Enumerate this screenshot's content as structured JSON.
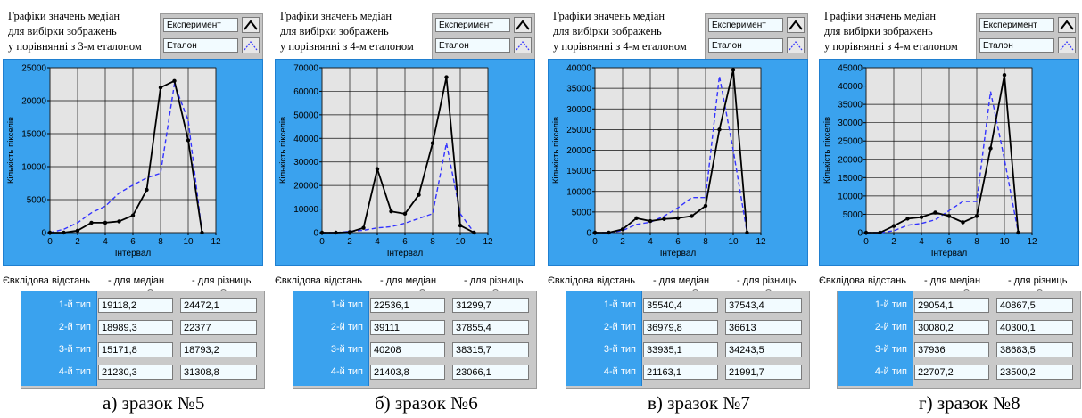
{
  "legend": {
    "experiment": "Експеримент",
    "etalon": "Еталон"
  },
  "colors": {
    "experiment": "#000000",
    "etalon": "#3333ff",
    "panel_blue": "#3aa2ee",
    "plot_bg": "#e4e4e4"
  },
  "axis": {
    "xlabel": "Інтервал",
    "ylabel": "Кількість пікселів",
    "xticks": [
      "0",
      "2",
      "4",
      "6",
      "8",
      "10",
      "12"
    ]
  },
  "distances": {
    "header": "Євклідова відстань",
    "medians_header": "- для медіан",
    "differences_header": "- для різниць",
    "types": [
      "1-й тип",
      "2-й тип",
      "3-й тип",
      "4-й тип"
    ]
  },
  "panels": [
    {
      "title_lines": [
        "Графіки значень медіан",
        "для вибірки зображень",
        "у порівнянні з 3-м еталоном"
      ],
      "yticks": [
        "0",
        "5000",
        "10000",
        "15000",
        "20000",
        "25000"
      ],
      "medians": [
        "19118,2",
        "18989,3",
        "15171,8",
        "21230,3"
      ],
      "differences": [
        "24472,1",
        "22377",
        "18793,2",
        "31308,8"
      ],
      "caption": "а) зразок №5"
    },
    {
      "title_lines": [
        "Графіки значень медіан",
        "для вибірки зображень",
        "у порівнянні з 4-м еталоном"
      ],
      "yticks": [
        "0",
        "10000",
        "20000",
        "30000",
        "40000",
        "50000",
        "60000",
        "70000"
      ],
      "medians": [
        "22536,1",
        "39111",
        "40208",
        "21403,8"
      ],
      "differences": [
        "31299,7",
        "37855,4",
        "38315,7",
        "23066,1"
      ],
      "caption": "б) зразок №6"
    },
    {
      "title_lines": [
        "Графіки значень медіан",
        "для вибірки зображень",
        "у порівнянні з 4-м еталоном"
      ],
      "yticks": [
        "0",
        "5000",
        "10000",
        "15000",
        "20000",
        "25000",
        "30000",
        "35000",
        "40000"
      ],
      "medians": [
        "35540,4",
        "36979,8",
        "33935,1",
        "21163,1"
      ],
      "differences": [
        "37543,4",
        "36613",
        "34243,5",
        "21991,7"
      ],
      "caption": "в) зразок №7"
    },
    {
      "title_lines": [
        "Графіки значень медіан",
        "для вибірки зображень",
        "у порівнянні з 4-м еталоном"
      ],
      "yticks": [
        "0",
        "5000",
        "10000",
        "15000",
        "20000",
        "25000",
        "30000",
        "35000",
        "40000",
        "45000"
      ],
      "medians": [
        "29054,1",
        "30080,2",
        "37936",
        "22707,2"
      ],
      "differences": [
        "40867,5",
        "40300,1",
        "38683,5",
        "23500,2"
      ],
      "caption": "г) зразок №8"
    }
  ],
  "chart_data": [
    {
      "type": "line",
      "xlabel": "Інтервал",
      "ylabel": "Кількість пікселів",
      "xlim": [
        0,
        12
      ],
      "ylim": [
        0,
        25000
      ],
      "series": [
        {
          "name": "Експеримент",
          "x": [
            0,
            1,
            2,
            3,
            4,
            5,
            6,
            7,
            8,
            9,
            10,
            11
          ],
          "values": [
            0,
            0,
            300,
            1500,
            1500,
            1700,
            2600,
            6500,
            22000,
            23000,
            14000,
            0
          ]
        },
        {
          "name": "Еталон",
          "x": [
            0,
            1,
            2,
            3,
            4,
            5,
            6,
            7,
            8,
            9,
            10,
            11
          ],
          "values": [
            0,
            500,
            1500,
            3000,
            4000,
            6000,
            7200,
            8300,
            9000,
            22500,
            17000,
            0
          ]
        }
      ]
    },
    {
      "type": "line",
      "xlabel": "Інтервал",
      "ylabel": "Кількість пікселів",
      "xlim": [
        0,
        12
      ],
      "ylim": [
        0,
        70000
      ],
      "series": [
        {
          "name": "Експеримент",
          "x": [
            0,
            1,
            2,
            3,
            4,
            5,
            6,
            7,
            8,
            9,
            10,
            11
          ],
          "values": [
            0,
            0,
            200,
            2000,
            27000,
            9000,
            8000,
            16000,
            38000,
            66000,
            3000,
            0
          ]
        },
        {
          "name": "Еталон",
          "x": [
            0,
            1,
            2,
            3,
            4,
            5,
            6,
            7,
            8,
            9,
            10,
            11
          ],
          "values": [
            0,
            0,
            500,
            1000,
            2000,
            2500,
            4000,
            6000,
            8000,
            38000,
            8000,
            0
          ]
        }
      ]
    },
    {
      "type": "line",
      "xlabel": "Інтервал",
      "ylabel": "Кількість пікселів",
      "xlim": [
        0,
        12
      ],
      "ylim": [
        0,
        40000
      ],
      "series": [
        {
          "name": "Експеримент",
          "x": [
            0,
            1,
            2,
            3,
            4,
            5,
            6,
            7,
            8,
            9,
            10,
            11
          ],
          "values": [
            0,
            0,
            800,
            3500,
            2800,
            3300,
            3500,
            4000,
            6500,
            25000,
            39500,
            0
          ]
        },
        {
          "name": "Еталон",
          "x": [
            0,
            1,
            2,
            3,
            4,
            5,
            6,
            7,
            8,
            9,
            10,
            11
          ],
          "values": [
            0,
            0,
            500,
            2000,
            2500,
            4000,
            6000,
            8500,
            8500,
            38000,
            20000,
            0
          ]
        }
      ]
    },
    {
      "type": "line",
      "xlabel": "Інтервал",
      "ylabel": "Кількість пікселів",
      "xlim": [
        0,
        12
      ],
      "ylim": [
        0,
        45000
      ],
      "series": [
        {
          "name": "Експеримент",
          "x": [
            0,
            1,
            2,
            3,
            4,
            5,
            6,
            7,
            8,
            9,
            10,
            11
          ],
          "values": [
            0,
            0,
            1800,
            3800,
            4200,
            5500,
            4500,
            2800,
            4500,
            23000,
            43000,
            0
          ]
        },
        {
          "name": "Еталон",
          "x": [
            0,
            1,
            2,
            3,
            4,
            5,
            6,
            7,
            8,
            9,
            10,
            11
          ],
          "values": [
            0,
            0,
            500,
            2000,
            2500,
            3500,
            6000,
            8500,
            8500,
            38500,
            20000,
            0
          ]
        }
      ]
    }
  ]
}
